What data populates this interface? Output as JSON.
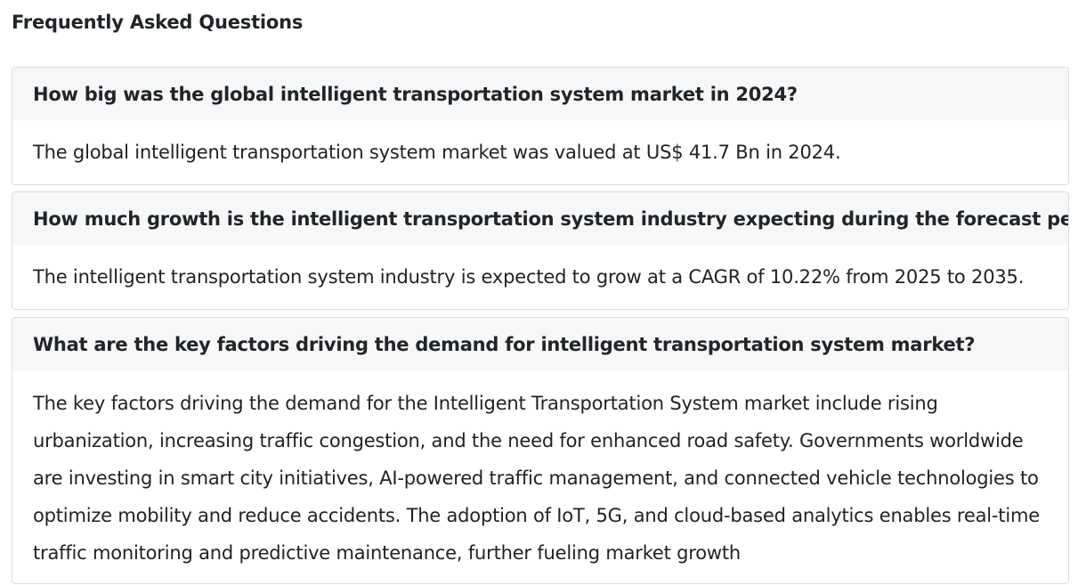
{
  "faq": {
    "title": "Frequently Asked Questions",
    "items": [
      {
        "question": "How big was the global intelligent transportation system market in 2024?",
        "answer": "The global intelligent transportation system market was valued at US$ 41.7 Bn in 2024."
      },
      {
        "question": "How much growth is the intelligent transportation system industry expecting during the forecast period?",
        "answer": "The intelligent transportation system industry is expected to grow at a CAGR of 10.22% from 2025 to 2035."
      },
      {
        "question": "What are the key factors driving the demand for intelligent transportation system market?",
        "answer": "The key factors driving the demand for the Intelligent Transportation System market include rising urbanization, increasing traffic congestion, and the need for enhanced road safety. Governments worldwide are investing in smart city initiatives, AI-powered traffic management, and connected vehicle technologies to optimize mobility and reduce accidents. The adoption of IoT, 5G, and cloud-based analytics enables real-time traffic monitoring and predictive maintenance, further fueling market growth"
      }
    ]
  }
}
